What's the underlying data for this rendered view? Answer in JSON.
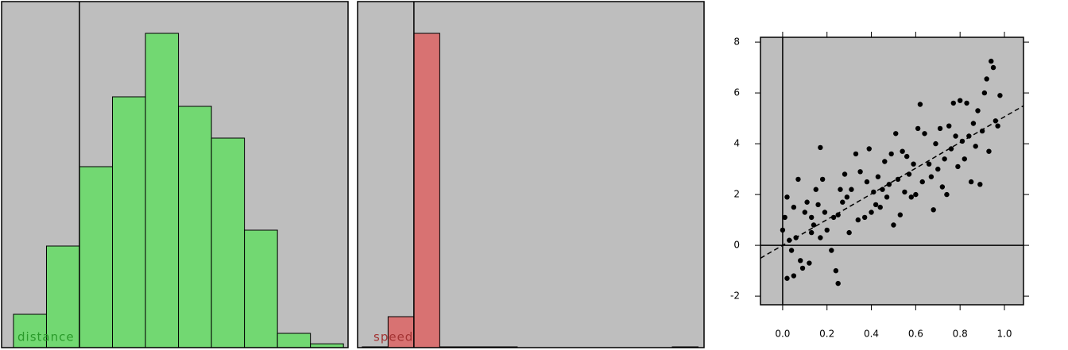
{
  "chart_data": [
    {
      "type": "histogram",
      "label": "distance",
      "color": "#72d872",
      "label_color": "#2a9a2a",
      "bins": [
        -2,
        -1,
        0,
        1,
        2,
        3,
        4,
        5,
        6,
        7,
        8
      ],
      "values": [
        10.5,
        32,
        57,
        79,
        99,
        76,
        66,
        37,
        4.5,
        1.2
      ],
      "xlim": [
        -2.36,
        8.14
      ],
      "ylim": [
        0,
        109
      ],
      "zero_line": true
    },
    {
      "type": "histogram",
      "label": "speed",
      "color": "#d87272",
      "label_color": "#a33333",
      "bins": [
        -2,
        -1,
        0,
        1,
        2,
        3,
        4,
        5,
        6,
        7,
        8,
        9,
        10,
        11
      ],
      "values": [
        0.25,
        9.75,
        99,
        0.25,
        0.25,
        0.25,
        0,
        0,
        0,
        0,
        0,
        0,
        0.25
      ],
      "xlim": [
        -2.18,
        11.23
      ],
      "ylim": [
        0,
        109
      ],
      "zero_line": true
    },
    {
      "type": "scatter",
      "color": "#000000",
      "x": [
        0.0,
        0.01,
        0.02,
        0.02,
        0.03,
        0.04,
        0.05,
        0.05,
        0.06,
        0.07,
        0.08,
        0.09,
        0.1,
        0.11,
        0.12,
        0.13,
        0.13,
        0.14,
        0.15,
        0.16,
        0.17,
        0.17,
        0.18,
        0.19,
        0.2,
        0.22,
        0.23,
        0.24,
        0.25,
        0.25,
        0.26,
        0.27,
        0.28,
        0.29,
        0.3,
        0.31,
        0.33,
        0.34,
        0.35,
        0.37,
        0.38,
        0.39,
        0.4,
        0.41,
        0.42,
        0.43,
        0.44,
        0.45,
        0.46,
        0.47,
        0.48,
        0.49,
        0.5,
        0.51,
        0.52,
        0.53,
        0.54,
        0.55,
        0.56,
        0.57,
        0.58,
        0.59,
        0.6,
        0.61,
        0.62,
        0.63,
        0.64,
        0.66,
        0.67,
        0.68,
        0.69,
        0.7,
        0.71,
        0.72,
        0.73,
        0.74,
        0.75,
        0.76,
        0.77,
        0.78,
        0.79,
        0.8,
        0.81,
        0.82,
        0.83,
        0.84,
        0.85,
        0.86,
        0.87,
        0.88,
        0.89,
        0.9,
        0.91,
        0.92,
        0.93,
        0.94,
        0.95,
        0.96,
        0.97,
        0.98
      ],
      "y": [
        0.6,
        1.1,
        -1.3,
        1.9,
        0.2,
        -0.2,
        1.5,
        -1.2,
        0.3,
        2.6,
        -0.6,
        -0.9,
        1.3,
        1.7,
        -0.7,
        0.5,
        1.1,
        0.8,
        2.2,
        1.6,
        3.85,
        0.3,
        2.6,
        1.3,
        0.6,
        -0.2,
        1.1,
        -1.0,
        -1.5,
        1.2,
        2.2,
        1.7,
        2.8,
        1.9,
        0.5,
        2.2,
        3.6,
        1.0,
        2.9,
        1.1,
        2.5,
        3.8,
        1.3,
        2.1,
        1.6,
        2.7,
        1.5,
        2.2,
        3.3,
        1.9,
        2.4,
        3.6,
        0.8,
        4.4,
        2.6,
        1.2,
        3.7,
        2.1,
        3.5,
        2.8,
        1.9,
        3.2,
        2.0,
        4.6,
        5.55,
        2.5,
        4.4,
        3.2,
        2.7,
        1.4,
        4.0,
        3.0,
        4.6,
        2.3,
        3.4,
        2.0,
        4.7,
        3.8,
        5.6,
        4.3,
        3.1,
        5.7,
        4.1,
        3.4,
        5.6,
        4.3,
        2.5,
        4.8,
        3.9,
        5.3,
        2.4,
        4.5,
        6.0,
        6.55,
        3.7,
        7.25,
        7.0,
        4.9,
        4.7,
        5.9
      ],
      "xlim": [
        -0.1,
        1.086
      ],
      "ylim": [
        -2.34,
        8.19
      ],
      "xticks": [
        {
          "value": 0,
          "label": "0.0"
        },
        {
          "value": 0.2,
          "label": "0.2"
        },
        {
          "value": 0.4,
          "label": "0.4"
        },
        {
          "value": 0.6,
          "label": "0.6"
        },
        {
          "value": 0.8,
          "label": "0.8"
        },
        {
          "value": 1,
          "label": "1.0"
        }
      ],
      "yticks": [
        -2,
        0,
        2,
        4,
        6,
        8
      ],
      "fit": {
        "intercept": 0,
        "slope": 5.06
      },
      "zero_line": true
    }
  ]
}
